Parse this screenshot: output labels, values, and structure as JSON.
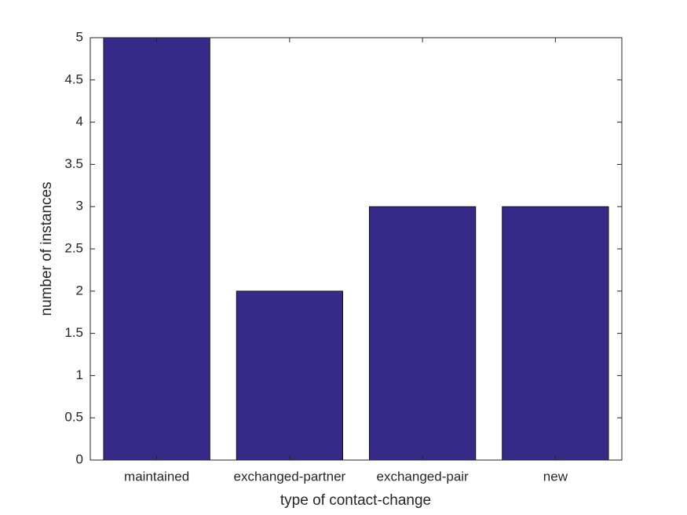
{
  "chart_data": {
    "type": "bar",
    "x_label": "type of contact-change",
    "y_label": "number of instances",
    "categories": [
      "maintained",
      "exchanged-partner",
      "exchanged-pair",
      "new"
    ],
    "values": [
      5,
      2,
      3,
      3
    ],
    "color": "#352a87",
    "ylim": [
      0,
      5
    ],
    "yticks": [
      0,
      0.5,
      1,
      1.5,
      2,
      2.5,
      3,
      3.5,
      4,
      4.5,
      5
    ],
    "grid": false
  }
}
